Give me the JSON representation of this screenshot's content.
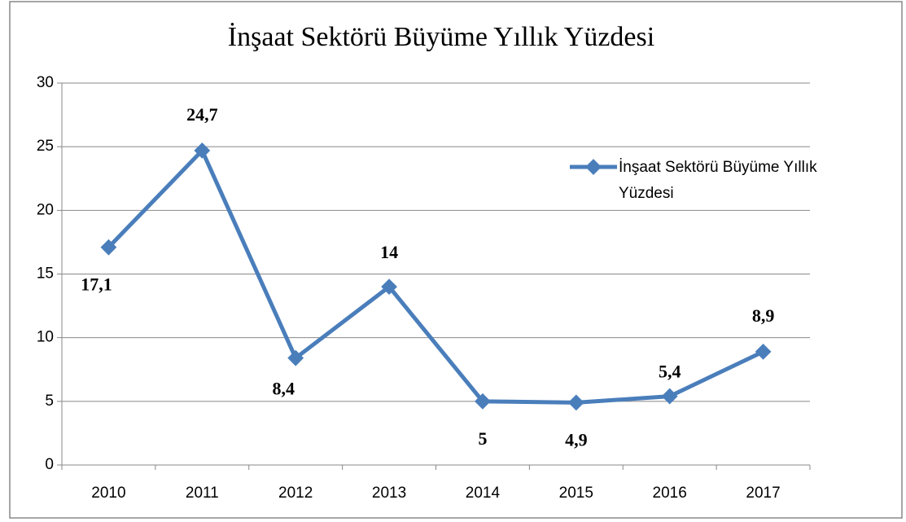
{
  "chart_data": {
    "type": "line",
    "title": "İnşaat Sektörü Büyüme Yıllık Yüzdesi",
    "categories": [
      "2010",
      "2011",
      "2012",
      "2013",
      "2014",
      "2015",
      "2016",
      "2017"
    ],
    "series": [
      {
        "name": "İnşaat Sektörü Büyüme Yıllık Yüzdesi",
        "color": "#4a7ebb",
        "values": [
          17.1,
          24.7,
          8.4,
          14,
          5,
          4.9,
          5.4,
          8.9
        ],
        "value_labels": [
          "17,1",
          "24,7",
          "8,4",
          "14",
          "5",
          "4,9",
          "5,4",
          "8,9"
        ]
      }
    ],
    "ylim": [
      0,
      30
    ],
    "yticks": [
      0,
      5,
      10,
      15,
      20,
      25,
      30
    ],
    "grid": true,
    "legend": "right"
  }
}
